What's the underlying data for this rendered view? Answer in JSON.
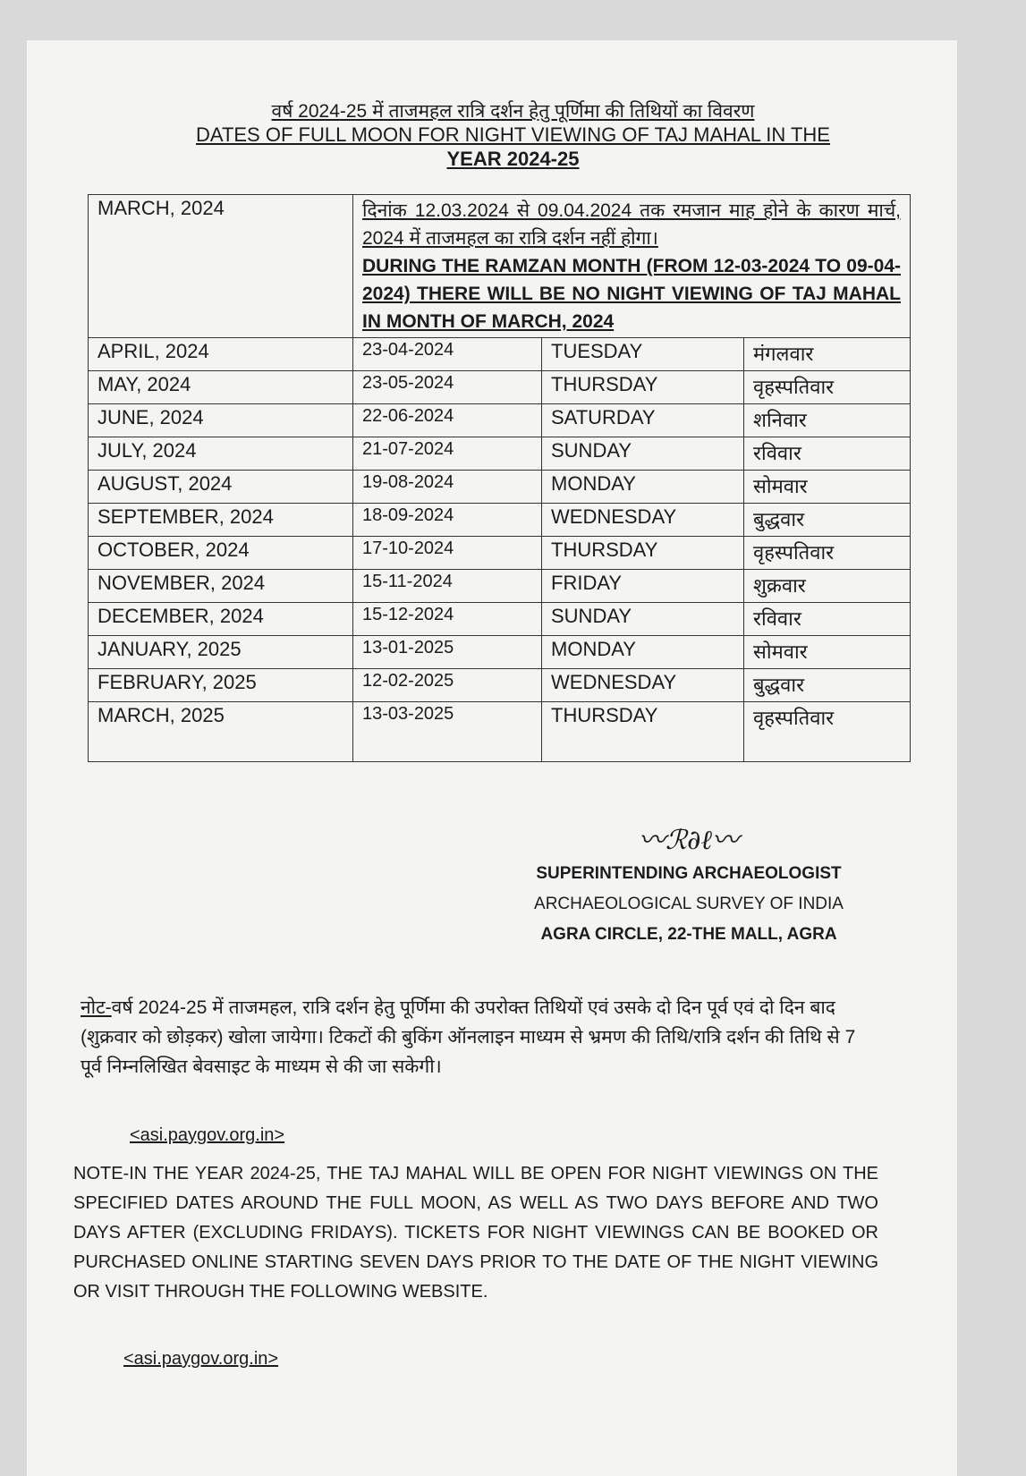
{
  "title_hindi": "वर्ष 2024-25 में ताजमहल रात्रि दर्शन हेतु पूर्णिमा की तिथियों का विवरण",
  "title_english_line1": "DATES OF FULL MOON FOR NIGHT VIEWING OF TAJ MAHAL IN THE",
  "title_english_line2": "YEAR 2024-25",
  "march_2024": {
    "month": "MARCH, 2024",
    "note_hindi": "दिनांक 12.03.2024 से 09.04.2024 तक रमजान माह होने के कारण मार्च, 2024 में ताजमहल का रात्रि दर्शन नहीं होगा।",
    "note_english": "DURING THE RAMZAN MONTH (FROM 12-03-2024 TO 09-04-2024) THERE WILL BE NO NIGHT VIEWING OF TAJ MAHAL IN MONTH OF MARCH, 2024"
  },
  "rows": [
    {
      "month": "APRIL, 2024",
      "date": "23-04-2024",
      "day": "TUESDAY",
      "day_hindi": "मंगलवार"
    },
    {
      "month": "MAY, 2024",
      "date": "23-05-2024",
      "day": "THURSDAY",
      "day_hindi": "वृहस्पतिवार"
    },
    {
      "month": "JUNE, 2024",
      "date": "22-06-2024",
      "day": "SATURDAY",
      "day_hindi": "शनिवार"
    },
    {
      "month": "JULY, 2024",
      "date": "21-07-2024",
      "day": "SUNDAY",
      "day_hindi": "रविवार"
    },
    {
      "month": "AUGUST, 2024",
      "date": "19-08-2024",
      "day": "MONDAY",
      "day_hindi": "सोमवार"
    },
    {
      "month": "SEPTEMBER, 2024",
      "date": "18-09-2024",
      "day": "WEDNESDAY",
      "day_hindi": "बुद्धवार"
    },
    {
      "month": "OCTOBER, 2024",
      "date": "17-10-2024",
      "day": "THURSDAY",
      "day_hindi": "वृहस्पतिवार"
    },
    {
      "month": "NOVEMBER, 2024",
      "date": "15-11-2024",
      "day": "FRIDAY",
      "day_hindi": "शुक्रवार"
    },
    {
      "month": "DECEMBER, 2024",
      "date": "15-12-2024",
      "day": "SUNDAY",
      "day_hindi": "रविवार"
    },
    {
      "month": "JANUARY, 2025",
      "date": "13-01-2025",
      "day": "MONDAY",
      "day_hindi": "सोमवार"
    },
    {
      "month": "FEBRUARY, 2025",
      "date": "12-02-2025",
      "day": "WEDNESDAY",
      "day_hindi": "बुद्धवार"
    },
    {
      "month": "MARCH, 2025",
      "date": "13-03-2025",
      "day": "THURSDAY",
      "day_hindi": "वृहस्पतिवार"
    }
  ],
  "signature": {
    "title": "SUPERINTENDING ARCHAEOLOGIST",
    "org": "ARCHAEOLOGICAL SURVEY OF INDIA",
    "address": "AGRA CIRCLE, 22-THE MALL, AGRA"
  },
  "note_hindi_label": "नोट-",
  "note_hindi": "वर्ष 2024-25 में ताजमहल, रात्रि दर्शन हेतु पूर्णिमा की उपरोक्त तिथियों एवं उसके दो दिन पूर्व एवं दो दिन बाद (शुक्रवार को छोड़कर) खोला जायेगा। टिकटों की बुकिंग ऑनलाइन माध्यम से भ्रमण की तिथि/रात्रि दर्शन की तिथि से 7 पूर्व निम्नलिखित बेवसाइट के माध्यम से की जा सकेगी।",
  "website_hindi": "<asi.paygov.org.in>",
  "note_english": "NOTE-IN THE YEAR 2024-25, THE TAJ MAHAL WILL BE OPEN FOR NIGHT VIEWINGS ON THE SPECIFIED DATES AROUND THE FULL MOON, AS WELL AS TWO DAYS BEFORE AND TWO DAYS AFTER (EXCLUDING FRIDAYS). TICKETS FOR NIGHT VIEWINGS CAN BE BOOKED OR PURCHASED ONLINE STARTING SEVEN DAYS PRIOR TO THE DATE OF THE NIGHT VIEWING OR VISIT THROUGH THE FOLLOWING WEBSITE.",
  "website_english": "<asi.paygov.org.in>"
}
